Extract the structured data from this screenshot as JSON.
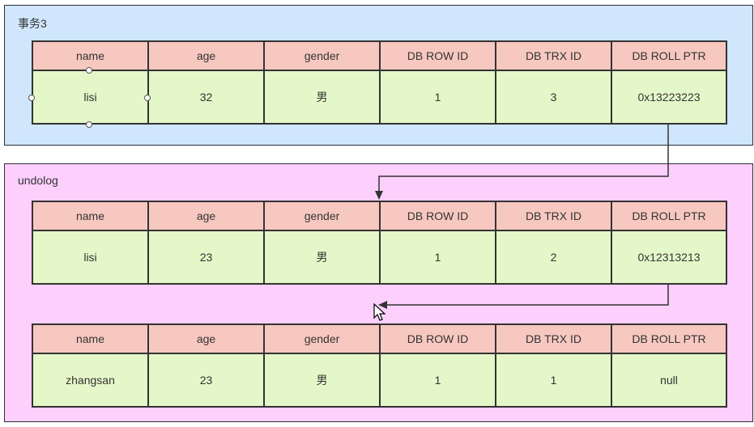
{
  "colors": {
    "transaction_bg": "#cfe6fc",
    "undolog_bg": "#fccffc",
    "header_bg": "#f7c8c0",
    "row_bg": "#e4f7c8",
    "line": "#333333"
  },
  "columns": [
    "name",
    "age",
    "gender",
    "DB ROW ID",
    "DB TRX ID",
    "DB ROLL PTR"
  ],
  "transaction": {
    "title": "事务3",
    "record": {
      "name": "lisi",
      "age": "32",
      "gender": "男",
      "db_row_id": "1",
      "db_trx_id": "3",
      "db_roll_ptr": "0x13223223"
    }
  },
  "undolog": {
    "title": "undolog",
    "records": [
      {
        "name": "lisi",
        "age": "23",
        "gender": "男",
        "db_row_id": "1",
        "db_trx_id": "2",
        "db_roll_ptr": "0x12313213"
      },
      {
        "name": "zhangsan",
        "age": "23",
        "gender": "男",
        "db_row_id": "1",
        "db_trx_id": "1",
        "db_roll_ptr": "null"
      }
    ]
  }
}
